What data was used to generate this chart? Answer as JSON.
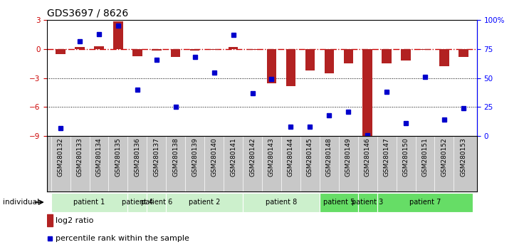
{
  "title": "GDS3697 / 8626",
  "samples": [
    "GSM280132",
    "GSM280133",
    "GSM280134",
    "GSM280135",
    "GSM280136",
    "GSM280137",
    "GSM280138",
    "GSM280139",
    "GSM280140",
    "GSM280141",
    "GSM280142",
    "GSM280143",
    "GSM280144",
    "GSM280145",
    "GSM280148",
    "GSM280149",
    "GSM280146",
    "GSM280147",
    "GSM280150",
    "GSM280151",
    "GSM280152",
    "GSM280153"
  ],
  "log2_ratio": [
    -0.5,
    0.25,
    0.3,
    2.9,
    -0.7,
    -0.15,
    -0.8,
    -0.15,
    -0.1,
    0.2,
    -0.1,
    -3.5,
    -3.8,
    -2.2,
    -2.5,
    -1.5,
    -9.0,
    -1.5,
    -1.2,
    -0.1,
    -1.8,
    -0.8
  ],
  "percentile_rank": [
    7,
    82,
    88,
    95,
    40,
    66,
    25,
    68,
    55,
    87,
    37,
    49,
    8,
    8,
    18,
    21,
    1,
    38,
    11,
    51,
    14,
    24
  ],
  "patient_config": [
    {
      "label": "patient 1",
      "indices": [
        0,
        1,
        2,
        3
      ],
      "color": "#ccf0cc"
    },
    {
      "label": "patient 4",
      "indices": [
        4
      ],
      "color": "#ccf0cc"
    },
    {
      "label": "patient 6",
      "indices": [
        5
      ],
      "color": "#ccf0cc"
    },
    {
      "label": "patient 2",
      "indices": [
        6,
        7,
        8,
        9
      ],
      "color": "#ccf0cc"
    },
    {
      "label": "patient 8",
      "indices": [
        10,
        11,
        12,
        13
      ],
      "color": "#ccf0cc"
    },
    {
      "label": "patient 5",
      "indices": [
        14,
        15
      ],
      "color": "#66dd66"
    },
    {
      "label": "patient 3",
      "indices": [
        16
      ],
      "color": "#66dd66"
    },
    {
      "label": "patient 7",
      "indices": [
        17,
        18,
        19,
        20,
        21
      ],
      "color": "#66dd66"
    }
  ],
  "ylim_left": [
    -9,
    3
  ],
  "ylim_right": [
    0,
    100
  ],
  "bar_color": "#b22222",
  "dot_color": "#0000cc",
  "xtick_bg_color": "#c8c8c8",
  "zero_line_color": "#cc0000",
  "title_fontsize": 10,
  "tick_fontsize": 6.5,
  "legend_fontsize": 8
}
